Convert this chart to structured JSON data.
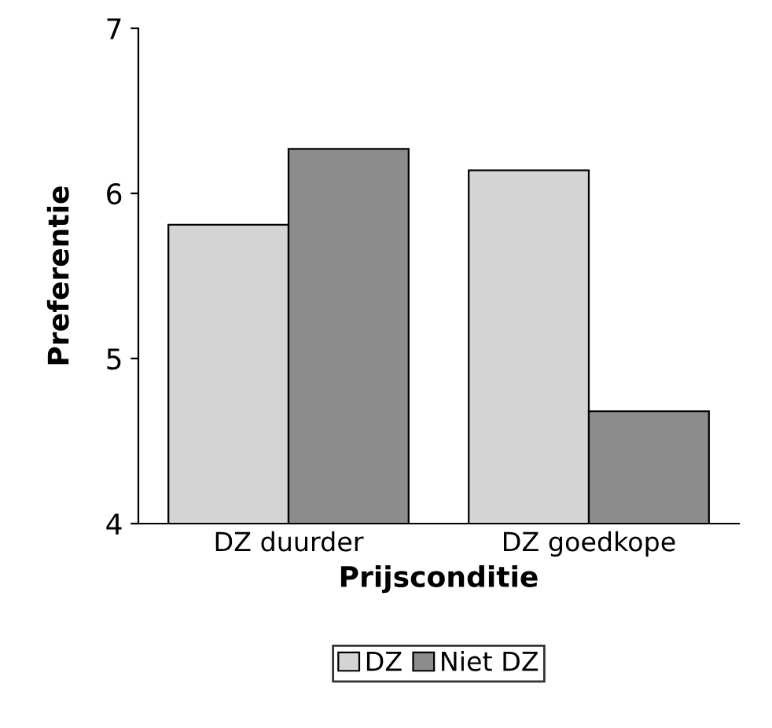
{
  "chart_data": {
    "type": "bar",
    "xlabel": "Prijsconditie",
    "ylabel": "Preferentie",
    "categories": [
      "DZ duurder",
      "DZ goedkope"
    ],
    "series": [
      {
        "name": "DZ",
        "color": "#d4d4d4",
        "values": [
          5.81,
          6.14
        ]
      },
      {
        "name": "Niet DZ",
        "color": "#8c8c8c",
        "values": [
          6.27,
          4.68
        ]
      }
    ],
    "ylim": [
      4,
      7
    ],
    "yticks": [
      4,
      5,
      6,
      7
    ],
    "grid": false,
    "legend": "bottom"
  }
}
